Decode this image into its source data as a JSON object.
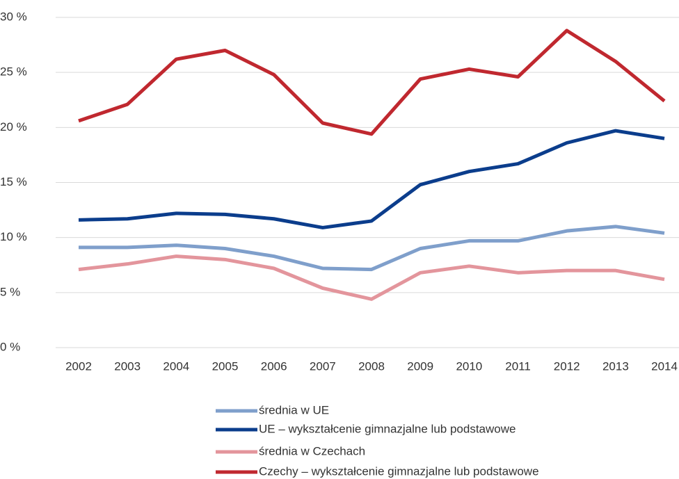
{
  "chart_data": {
    "type": "line",
    "categories": [
      "2002",
      "2003",
      "2004",
      "2005",
      "2006",
      "2007",
      "2008",
      "2009",
      "2010",
      "2011",
      "2012",
      "2013",
      "2014"
    ],
    "series": [
      {
        "name": "średnia w UE",
        "color": "#7f9fcb",
        "values": [
          9.1,
          9.1,
          9.3,
          9.0,
          8.3,
          7.2,
          7.1,
          9.0,
          9.7,
          9.7,
          10.6,
          11.0,
          10.4
        ]
      },
      {
        "name": "UE – wykształcenie gimnazjalne lub podstawowe",
        "color": "#0b3d8c",
        "values": [
          11.6,
          11.7,
          12.2,
          12.1,
          11.7,
          10.9,
          11.5,
          14.8,
          16.0,
          16.7,
          18.6,
          19.7,
          19.0
        ]
      },
      {
        "name": "średnia w Czechach",
        "color": "#e3959c",
        "values": [
          7.1,
          7.6,
          8.3,
          8.0,
          7.2,
          5.4,
          4.4,
          6.8,
          7.4,
          6.8,
          7.0,
          7.0,
          6.2
        ]
      },
      {
        "name": "Czechy – wykształcenie gimnazjalne lub podstawowe",
        "color": "#c0282f",
        "values": [
          20.6,
          22.1,
          26.2,
          27.0,
          24.8,
          20.4,
          19.4,
          24.4,
          25.3,
          24.6,
          28.8,
          26.0,
          22.4
        ]
      }
    ],
    "ylim": [
      0,
      30
    ],
    "yticks": [
      {
        "value": 0,
        "label": "0 %"
      },
      {
        "value": 5,
        "label": "5 %"
      },
      {
        "value": 10,
        "label": "10 %"
      },
      {
        "value": 15,
        "label": "15 %"
      },
      {
        "value": 20,
        "label": "20 %"
      },
      {
        "value": 25,
        "label": "25 %"
      },
      {
        "value": 30,
        "label": "30 %"
      }
    ],
    "grid": true,
    "legend": "bottom"
  }
}
